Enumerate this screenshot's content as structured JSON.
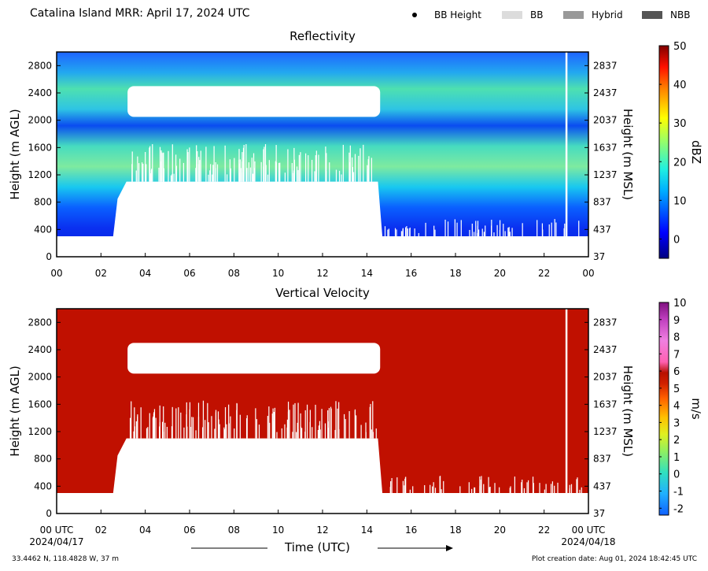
{
  "header": {
    "title": "Catalina Island MRR:  April 17, 2024 UTC",
    "legend": [
      {
        "label": "BB Height",
        "kind": "dot",
        "color": "#000000"
      },
      {
        "label": "BB",
        "kind": "swatch",
        "color": "#dcdcdc"
      },
      {
        "label": "Hybrid",
        "kind": "swatch",
        "color": "#999999"
      },
      {
        "label": "NBB",
        "kind": "swatch",
        "color": "#555555"
      }
    ]
  },
  "footer": {
    "location": "33.4462 N, 118.4828 W, 37 m",
    "creation": "Plot creation date: Aug 01, 2024 18:42:45 UTC",
    "xlabel": "Time (UTC)",
    "start_date": "2024/04/17",
    "end_date": "2024/04/18"
  },
  "chart_data": [
    {
      "type": "heatmap",
      "title": "Reflectivity",
      "ylabel_left": "Height (m AGL)",
      "ylabel_right": "Height (m MSL)",
      "xlim": [
        0,
        24
      ],
      "ylim": [
        0,
        3000
      ],
      "x_ticks": [
        "00",
        "02",
        "04",
        "06",
        "08",
        "10",
        "12",
        "14",
        "16",
        "18",
        "20",
        "22",
        "00"
      ],
      "y_ticks_left": [
        "0",
        "400",
        "800",
        "1200",
        "1600",
        "2000",
        "2400",
        "2800"
      ],
      "y_ticks_right": [
        "37",
        "437",
        "837",
        "1237",
        "1637",
        "2037",
        "2437",
        "2837"
      ],
      "colorbar": {
        "label": "dBZ",
        "min": -5,
        "max": 50,
        "ticks": [
          "0",
          "10",
          "20",
          "30",
          "40",
          "50"
        ],
        "tick_values": [
          0,
          10,
          20,
          30,
          40,
          50
        ]
      },
      "data_gap_hours": [
        23.0
      ],
      "regions": {
        "lowest_echo_height_m": 300,
        "cloud_base_hours_3_to_14_6_m": 1100,
        "gap_layer_m": [
          2050,
          2500
        ],
        "onset_hour": 2.8,
        "end_hour": 14.6
      }
    },
    {
      "type": "heatmap",
      "title": "Vertical Velocity",
      "ylabel_left": "Height (m AGL)",
      "ylabel_right": "Height (m MSL)",
      "xlim": [
        0,
        24
      ],
      "ylim": [
        0,
        3000
      ],
      "x_ticks": [
        "00 UTC",
        "02",
        "04",
        "06",
        "08",
        "10",
        "12",
        "14",
        "16",
        "18",
        "20",
        "22",
        "00 UTC"
      ],
      "y_ticks_left": [
        "0",
        "400",
        "800",
        "1200",
        "1600",
        "2000",
        "2400",
        "2800"
      ],
      "y_ticks_right": [
        "37",
        "437",
        "837",
        "1237",
        "1637",
        "2037",
        "2437",
        "2837"
      ],
      "colorbar": {
        "label": "m/s",
        "min": -2.4,
        "max": 10,
        "ticks": [
          "-2",
          "-1",
          "0",
          "1",
          "2",
          "3",
          "4",
          "5",
          "6",
          "7",
          "8",
          "9",
          "10"
        ],
        "tick_values": [
          -2,
          -1,
          0,
          1,
          2,
          3,
          4,
          5,
          6,
          7,
          8,
          9,
          10
        ]
      },
      "data_gap_hours": [
        23.0
      ],
      "dominant_value_ms": 6,
      "dominant_color": "#c01000"
    }
  ]
}
